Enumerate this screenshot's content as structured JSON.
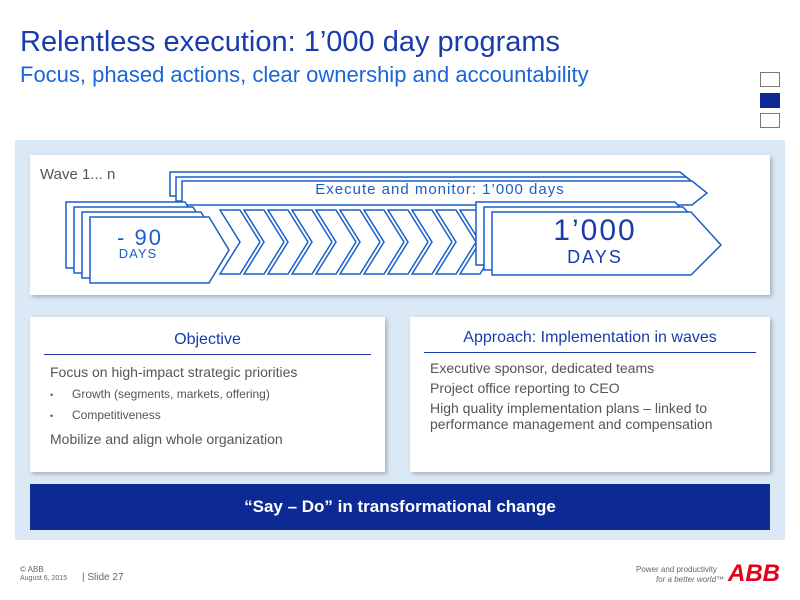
{
  "header": {
    "title": "Relentless execution: 1’000 day programs",
    "subtitle": "Focus, phased actions, clear ownership and accountability"
  },
  "diagram": {
    "wave": "Wave 1... n",
    "execute": "Execute and monitor: 1’000 days",
    "short": {
      "number": "- 90",
      "unit": "DAYS"
    },
    "long": {
      "number": "1’000",
      "unit": "DAYS"
    }
  },
  "objective": {
    "title": "Objective",
    "items": [
      "Focus on high-impact strategic priorities",
      "Mobilize and align whole organization"
    ],
    "bullets": [
      "Growth (segments, markets, offering)",
      "Competitiveness"
    ]
  },
  "approach": {
    "title": "Approach: Implementation in waves",
    "items": [
      "Executive sponsor, dedicated teams",
      "Project office reporting to CEO",
      "High quality implementation plans – linked to performance management and compensation"
    ]
  },
  "banner": "“Say – Do” in transformational change",
  "footer": {
    "copyright": "© ABB",
    "date": "August 6, 2015",
    "slide": "| Slide 27",
    "tagline": "Power and productivity",
    "tagline_sub": "for a better world™",
    "logo": "ABB"
  }
}
